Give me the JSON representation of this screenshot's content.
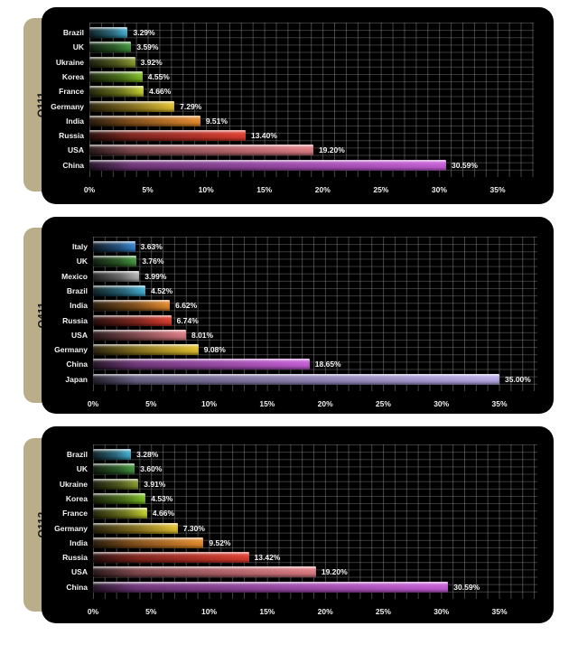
{
  "chart_data": [
    {
      "type": "bar",
      "orientation": "horizontal",
      "title": "Q111",
      "categories": [
        "Brazil",
        "UK",
        "Ukraine",
        "Korea",
        "France",
        "Germany",
        "India",
        "Russia",
        "USA",
        "China"
      ],
      "values": [
        3.29,
        3.59,
        3.92,
        4.55,
        4.66,
        7.29,
        9.51,
        13.4,
        19.2,
        30.59
      ],
      "value_labels": [
        "3.29%",
        "3.59%",
        "3.92%",
        "4.55%",
        "4.66%",
        "7.29%",
        "9.51%",
        "13.40%",
        "19.20%",
        "30.59%"
      ],
      "colors": [
        "#3fb4d8",
        "#3f9a3a",
        "#8a9a2a",
        "#7ec41e",
        "#c8d42a",
        "#e8c22a",
        "#e88a28",
        "#e0382a",
        "#e07a82",
        "#c65ad8"
      ],
      "xticks": [
        "0%",
        "5%",
        "10%",
        "15%",
        "20%",
        "25%",
        "30%",
        "35%"
      ],
      "xlim": [
        0,
        35
      ],
      "xlabel": "",
      "ylabel": "",
      "grid": true,
      "legend": "none"
    },
    {
      "type": "bar",
      "orientation": "horizontal",
      "title": "Q411",
      "categories": [
        "Italy",
        "UK",
        "Mexico",
        "Brazil",
        "India",
        "Russia",
        "USA",
        "Germany",
        "China",
        "Japan"
      ],
      "values": [
        3.63,
        3.76,
        3.99,
        4.52,
        6.62,
        6.74,
        8.01,
        9.08,
        18.65,
        35.0
      ],
      "value_labels": [
        "3.63%",
        "3.76%",
        "3.99%",
        "4.52%",
        "6.62%",
        "6.74%",
        "8.01%",
        "9.08%",
        "18.65%",
        "35.00%"
      ],
      "colors": [
        "#2f86d6",
        "#3f9a3a",
        "#b8b8b8",
        "#3fb4d8",
        "#e88a28",
        "#e0382a",
        "#e07a82",
        "#e8c22a",
        "#c65ad8",
        "#b8a8e8"
      ],
      "xticks": [
        "0%",
        "5%",
        "10%",
        "15%",
        "20%",
        "25%",
        "30%",
        "35%"
      ],
      "xlim": [
        0,
        35
      ],
      "xlabel": "",
      "ylabel": "",
      "grid": true,
      "legend": "none"
    },
    {
      "type": "bar",
      "orientation": "horizontal",
      "title": "Q112",
      "categories": [
        "Brazil",
        "UK",
        "Ukraine",
        "Korea",
        "France",
        "Germany",
        "India",
        "Russia",
        "USA",
        "China"
      ],
      "values": [
        3.28,
        3.6,
        3.91,
        4.53,
        4.66,
        7.3,
        9.52,
        13.42,
        19.2,
        30.59
      ],
      "value_labels": [
        "3.28%",
        "3.60%",
        "3.91%",
        "4.53%",
        "4.66%",
        "7.30%",
        "9.52%",
        "13.42%",
        "19.20%",
        "30.59%"
      ],
      "colors": [
        "#3fb4d8",
        "#3f9a3a",
        "#8a9a2a",
        "#7ec41e",
        "#c8d42a",
        "#e8c22a",
        "#e88a28",
        "#e0382a",
        "#e07a82",
        "#c65ad8"
      ],
      "xticks": [
        "0%",
        "5%",
        "10%",
        "15%",
        "20%",
        "25%",
        "30%",
        "35%"
      ],
      "xlim": [
        0,
        35
      ],
      "xlabel": "",
      "ylabel": "",
      "grid": true,
      "legend": "none"
    }
  ],
  "charts": [
    {
      "tab_label": "Q111"
    },
    {
      "tab_label": "Q411"
    },
    {
      "tab_label": "Q112"
    }
  ]
}
